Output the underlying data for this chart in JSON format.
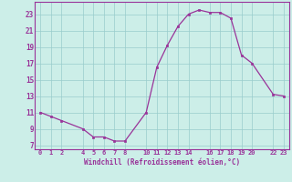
{
  "x": [
    0,
    1,
    2,
    4,
    5,
    6,
    7,
    8,
    10,
    11,
    12,
    13,
    14,
    15,
    16,
    17,
    18,
    19,
    20,
    22,
    23
  ],
  "y": [
    11,
    10.5,
    10,
    9,
    8,
    8,
    7.5,
    7.5,
    11,
    16.5,
    19.2,
    21.5,
    23.0,
    23.5,
    23.2,
    23.2,
    22.5,
    18.0,
    17.0,
    13.2,
    13.0
  ],
  "xticks": [
    0,
    1,
    2,
    4,
    5,
    6,
    7,
    8,
    10,
    11,
    12,
    13,
    14,
    16,
    17,
    18,
    19,
    20,
    22,
    23
  ],
  "xtick_labels": [
    "0",
    "1",
    "2",
    "4",
    "5",
    "6",
    "7",
    "8",
    "10",
    "11",
    "12",
    "13",
    "14",
    "16",
    "17",
    "18",
    "19",
    "20",
    "22",
    "23"
  ],
  "yticks": [
    7,
    9,
    11,
    13,
    15,
    17,
    19,
    21,
    23
  ],
  "ylim": [
    6.5,
    24.5
  ],
  "xlim": [
    -0.5,
    23.5
  ],
  "xlabel": "Windchill (Refroidissement éolien,°C)",
  "line_color": "#993399",
  "marker_color": "#993399",
  "bg_color": "#cceee8",
  "grid_color": "#99cccc",
  "label_color": "#993399",
  "tick_color": "#993399",
  "spine_color": "#993399"
}
